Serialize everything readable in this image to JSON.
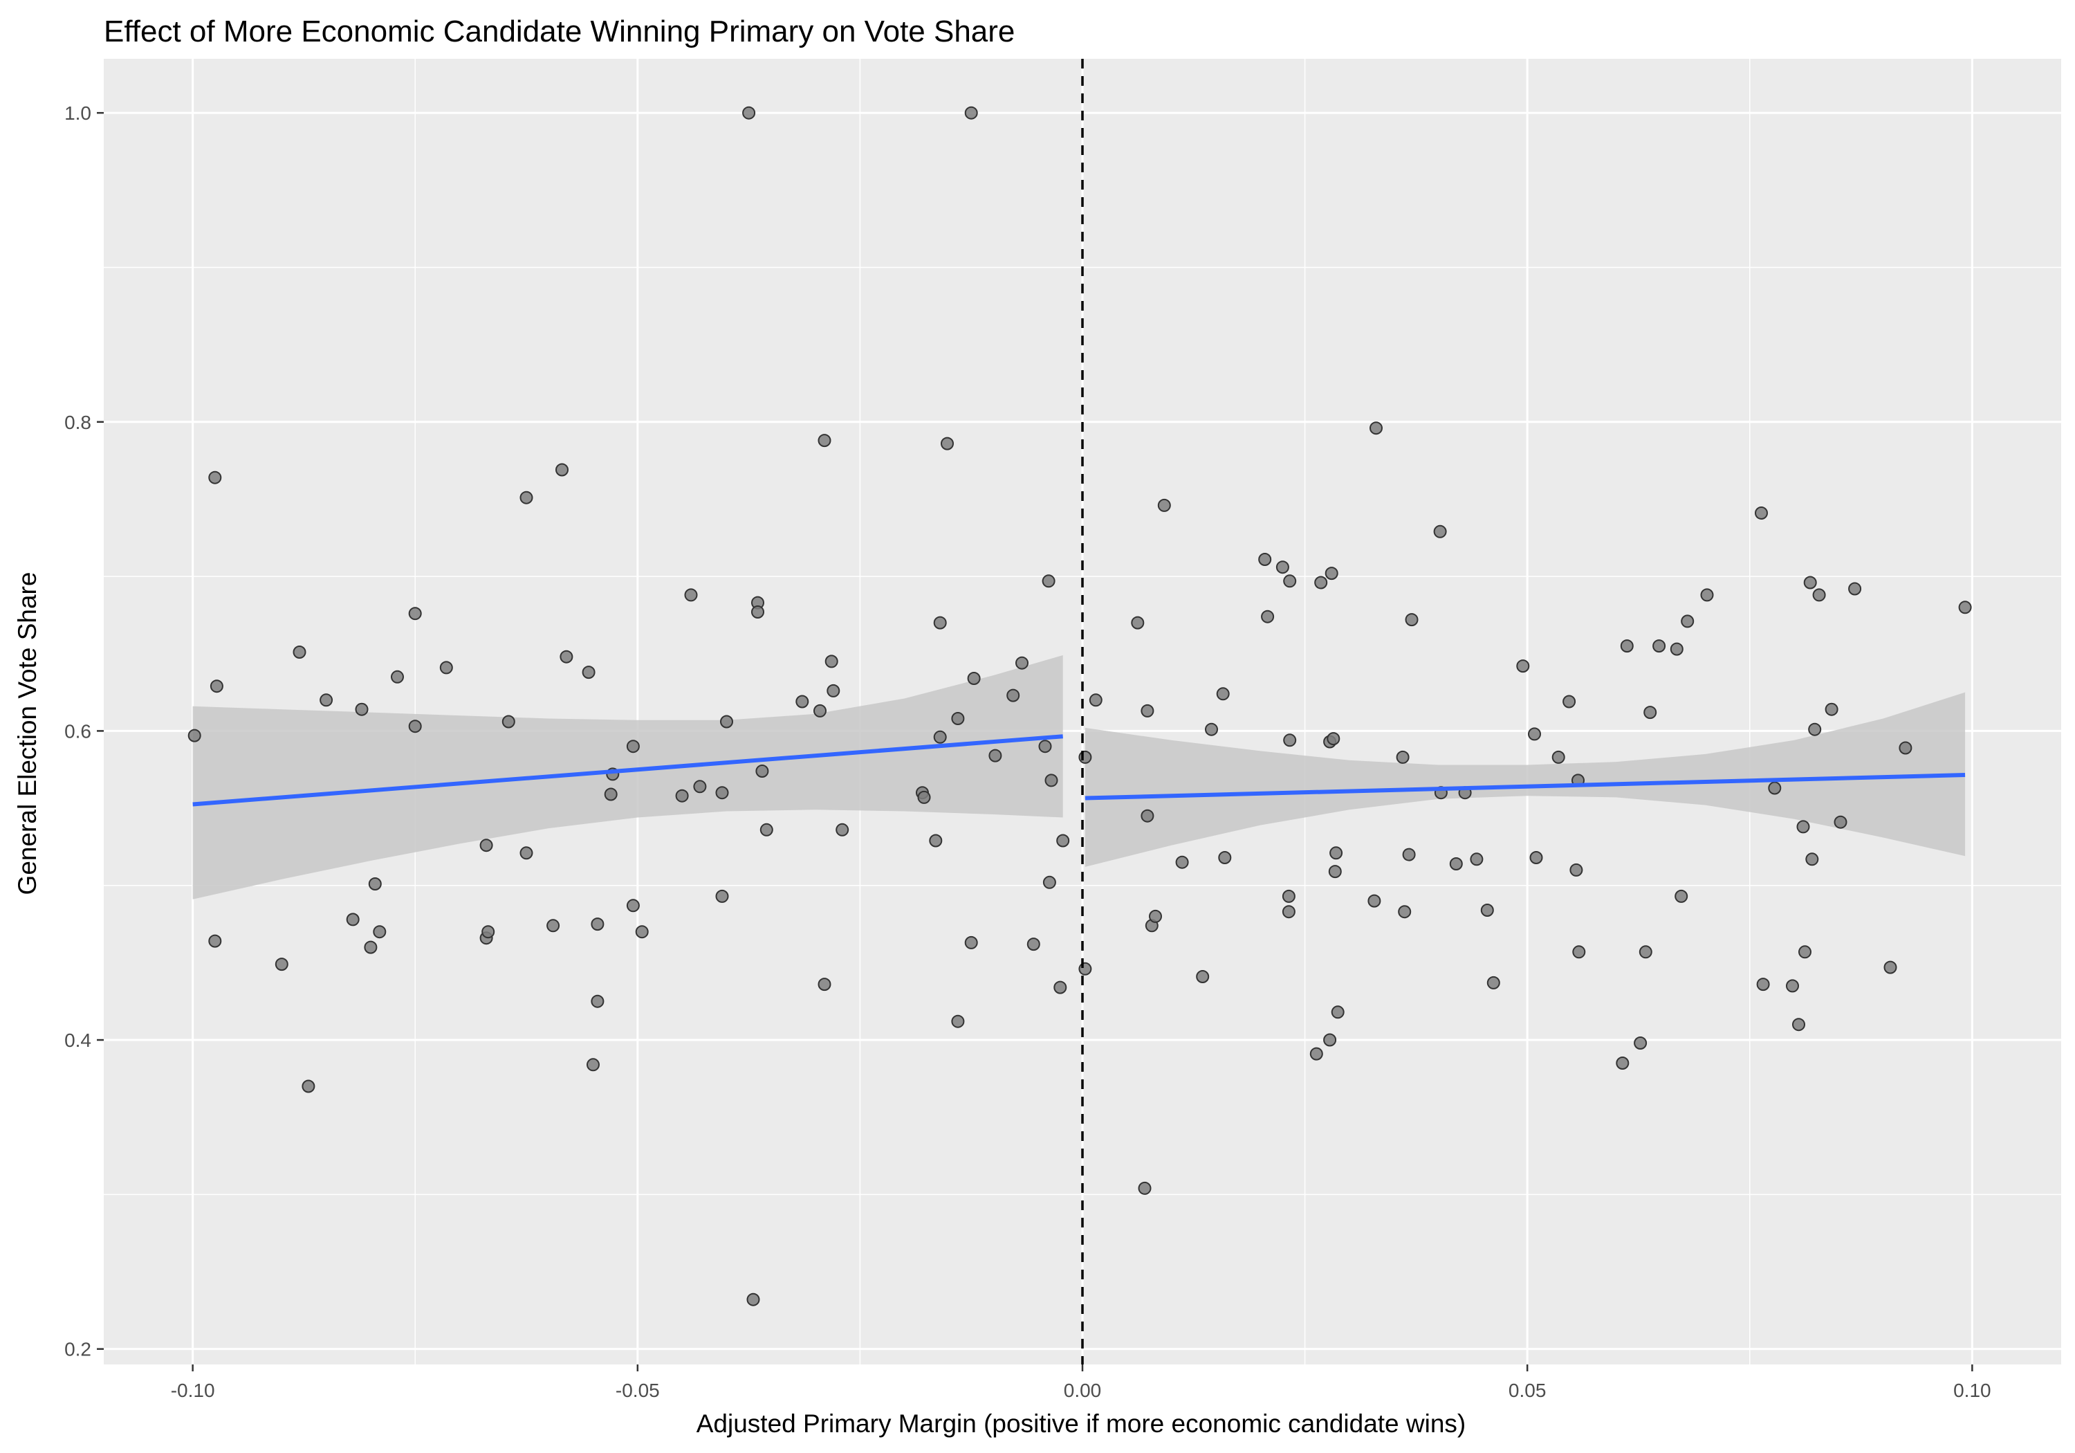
{
  "chart_data": {
    "type": "scatter",
    "title": "Effect of More Economic Candidate Winning Primary on Vote Share",
    "xlabel": "Adjusted Primary Margin (positive if more economic candidate wins)",
    "ylabel": "General Election Vote Share",
    "xlim": [
      -0.11,
      0.11
    ],
    "ylim": [
      0.19,
      1.035
    ],
    "x_ticks": [
      {
        "value": -0.1,
        "label": "-0.10"
      },
      {
        "value": -0.05,
        "label": "-0.05"
      },
      {
        "value": 0.0,
        "label": "0.00"
      },
      {
        "value": 0.05,
        "label": "0.05"
      },
      {
        "value": 0.1,
        "label": "0.10"
      }
    ],
    "y_ticks": [
      {
        "value": 0.2,
        "label": "0.2"
      },
      {
        "value": 0.4,
        "label": "0.4"
      },
      {
        "value": 0.6,
        "label": "0.6"
      },
      {
        "value": 0.8,
        "label": "0.8"
      },
      {
        "value": 1.0,
        "label": "1.0"
      }
    ],
    "grid": true,
    "cutoff_line": {
      "x": 0.0,
      "style": "dashed"
    },
    "points": [
      [
        -0.0998,
        0.597
      ],
      [
        -0.0975,
        0.764
      ],
      [
        -0.0973,
        0.629
      ],
      [
        -0.0975,
        0.464
      ],
      [
        -0.088,
        0.651
      ],
      [
        -0.09,
        0.449
      ],
      [
        -0.087,
        0.37
      ],
      [
        -0.085,
        0.62
      ],
      [
        -0.081,
        0.614
      ],
      [
        -0.082,
        0.478
      ],
      [
        -0.08,
        0.46
      ],
      [
        -0.0795,
        0.501
      ],
      [
        -0.079,
        0.47
      ],
      [
        -0.077,
        0.635
      ],
      [
        -0.075,
        0.676
      ],
      [
        -0.075,
        0.603
      ],
      [
        -0.0715,
        0.641
      ],
      [
        -0.067,
        0.526
      ],
      [
        -0.067,
        0.466
      ],
      [
        -0.0668,
        0.47
      ],
      [
        -0.0645,
        0.606
      ],
      [
        -0.0625,
        0.751
      ],
      [
        -0.0625,
        0.521
      ],
      [
        -0.0595,
        0.474
      ],
      [
        -0.0585,
        0.769
      ],
      [
        -0.058,
        0.648
      ],
      [
        -0.0555,
        0.638
      ],
      [
        -0.055,
        0.384
      ],
      [
        -0.0545,
        0.475
      ],
      [
        -0.0545,
        0.425
      ],
      [
        -0.053,
        0.559
      ],
      [
        -0.0528,
        0.572
      ],
      [
        -0.0505,
        0.59
      ],
      [
        -0.0505,
        0.487
      ],
      [
        -0.0495,
        0.47
      ],
      [
        -0.045,
        0.558
      ],
      [
        -0.044,
        0.688
      ],
      [
        -0.043,
        0.564
      ],
      [
        -0.0405,
        0.56
      ],
      [
        -0.0405,
        0.493
      ],
      [
        -0.04,
        0.606
      ],
      [
        -0.0375,
        1.0
      ],
      [
        -0.037,
        0.232
      ],
      [
        -0.0365,
        0.683
      ],
      [
        -0.0365,
        0.677
      ],
      [
        -0.036,
        0.574
      ],
      [
        -0.0355,
        0.536
      ],
      [
        -0.0315,
        0.619
      ],
      [
        -0.0295,
        0.613
      ],
      [
        -0.029,
        0.788
      ],
      [
        -0.029,
        0.436
      ],
      [
        -0.0282,
        0.645
      ],
      [
        -0.028,
        0.626
      ],
      [
        -0.027,
        0.536
      ],
      [
        -0.018,
        0.56
      ],
      [
        -0.0178,
        0.557
      ],
      [
        -0.0165,
        0.529
      ],
      [
        -0.016,
        0.67
      ],
      [
        -0.016,
        0.596
      ],
      [
        -0.0152,
        0.786
      ],
      [
        -0.014,
        0.608
      ],
      [
        -0.014,
        0.412
      ],
      [
        -0.0125,
        1.0
      ],
      [
        -0.0122,
        0.634
      ],
      [
        -0.0125,
        0.463
      ],
      [
        -0.0098,
        0.584
      ],
      [
        -0.0078,
        0.623
      ],
      [
        -0.0068,
        0.644
      ],
      [
        -0.0055,
        0.462
      ],
      [
        -0.0042,
        0.59
      ],
      [
        -0.0038,
        0.697
      ],
      [
        -0.0037,
        0.502
      ],
      [
        -0.0035,
        0.568
      ],
      [
        -0.0025,
        0.434
      ],
      [
        -0.0022,
        0.529
      ],
      [
        0.0003,
        0.583
      ],
      [
        0.0003,
        0.446
      ],
      [
        0.0015,
        0.62
      ],
      [
        0.0062,
        0.67
      ],
      [
        0.007,
        0.304
      ],
      [
        0.0073,
        0.545
      ],
      [
        0.0073,
        0.613
      ],
      [
        0.0078,
        0.474
      ],
      [
        0.0082,
        0.48
      ],
      [
        0.0092,
        0.746
      ],
      [
        0.0112,
        0.515
      ],
      [
        0.0135,
        0.441
      ],
      [
        0.0145,
        0.601
      ],
      [
        0.0158,
        0.624
      ],
      [
        0.016,
        0.518
      ],
      [
        0.0205,
        0.711
      ],
      [
        0.0208,
        0.674
      ],
      [
        0.0225,
        0.706
      ],
      [
        0.0232,
        0.493
      ],
      [
        0.0232,
        0.483
      ],
      [
        0.0233,
        0.594
      ],
      [
        0.0233,
        0.697
      ],
      [
        0.0263,
        0.391
      ],
      [
        0.0268,
        0.696
      ],
      [
        0.0278,
        0.4
      ],
      [
        0.0278,
        0.593
      ],
      [
        0.028,
        0.702
      ],
      [
        0.0282,
        0.595
      ],
      [
        0.0284,
        0.509
      ],
      [
        0.0285,
        0.521
      ],
      [
        0.0287,
        0.418
      ],
      [
        0.0328,
        0.49
      ],
      [
        0.033,
        0.796
      ],
      [
        0.036,
        0.583
      ],
      [
        0.0362,
        0.483
      ],
      [
        0.0367,
        0.52
      ],
      [
        0.037,
        0.672
      ],
      [
        0.0402,
        0.729
      ],
      [
        0.0403,
        0.56
      ],
      [
        0.042,
        0.514
      ],
      [
        0.043,
        0.56
      ],
      [
        0.0443,
        0.517
      ],
      [
        0.0455,
        0.484
      ],
      [
        0.0462,
        0.437
      ],
      [
        0.0495,
        0.642
      ],
      [
        0.0508,
        0.598
      ],
      [
        0.051,
        0.518
      ],
      [
        0.0535,
        0.583
      ],
      [
        0.0547,
        0.619
      ],
      [
        0.0555,
        0.51
      ],
      [
        0.0557,
        0.568
      ],
      [
        0.0558,
        0.457
      ],
      [
        0.0607,
        0.385
      ],
      [
        0.0612,
        0.655
      ],
      [
        0.0627,
        0.398
      ],
      [
        0.0633,
        0.457
      ],
      [
        0.0638,
        0.612
      ],
      [
        0.0648,
        0.655
      ],
      [
        0.0668,
        0.653
      ],
      [
        0.0673,
        0.493
      ],
      [
        0.068,
        0.671
      ],
      [
        0.0702,
        0.688
      ],
      [
        0.0763,
        0.741
      ],
      [
        0.0765,
        0.436
      ],
      [
        0.0778,
        0.563
      ],
      [
        0.0798,
        0.435
      ],
      [
        0.0805,
        0.41
      ],
      [
        0.081,
        0.538
      ],
      [
        0.0812,
        0.457
      ],
      [
        0.0818,
        0.696
      ],
      [
        0.082,
        0.517
      ],
      [
        0.0823,
        0.601
      ],
      [
        0.0828,
        0.688
      ],
      [
        0.0842,
        0.614
      ],
      [
        0.0852,
        0.541
      ],
      [
        0.0868,
        0.692
      ],
      [
        0.0908,
        0.447
      ],
      [
        0.0925,
        0.589
      ],
      [
        0.0992,
        0.68
      ]
    ],
    "fit_lines": [
      {
        "x": [
          -0.1,
          -0.0022
        ],
        "y": [
          0.5525,
          0.5965
        ]
      },
      {
        "x": [
          0.0003,
          0.0992
        ],
        "y": [
          0.5565,
          0.5715
        ]
      }
    ],
    "confidence_bands": [
      {
        "x": [
          -0.1,
          -0.09,
          -0.08,
          -0.07,
          -0.06,
          -0.05,
          -0.04,
          -0.03,
          -0.02,
          -0.01,
          -0.0022
        ],
        "lower": [
          0.491,
          0.504,
          0.516,
          0.527,
          0.537,
          0.544,
          0.548,
          0.549,
          0.548,
          0.546,
          0.544
        ],
        "upper": [
          0.616,
          0.614,
          0.612,
          0.61,
          0.608,
          0.607,
          0.607,
          0.611,
          0.621,
          0.636,
          0.649
        ]
      },
      {
        "x": [
          0.0003,
          0.01,
          0.02,
          0.03,
          0.04,
          0.05,
          0.06,
          0.07,
          0.08,
          0.09,
          0.0992
        ],
        "lower": [
          0.512,
          0.526,
          0.539,
          0.549,
          0.556,
          0.558,
          0.557,
          0.552,
          0.543,
          0.531,
          0.519
        ],
        "upper": [
          0.602,
          0.594,
          0.587,
          0.581,
          0.578,
          0.578,
          0.58,
          0.585,
          0.594,
          0.608,
          0.625
        ]
      }
    ],
    "colors": {
      "panel": "#ebebeb",
      "grid": "#ffffff",
      "point_fill": "#7f7f7f",
      "point_stroke": "#333333",
      "fit_line": "#3366ff",
      "band": "#c8c8c8",
      "cutoff": "#000000"
    }
  }
}
